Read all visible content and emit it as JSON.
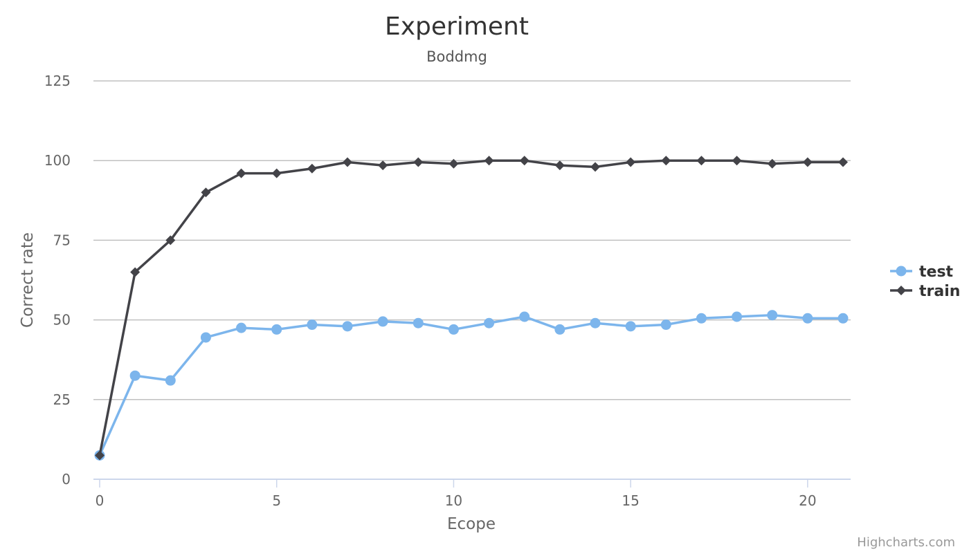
{
  "chart_data": {
    "type": "line",
    "title": "Experiment",
    "subtitle": "Boddmg",
    "xlabel": "Ecope",
    "ylabel": "Correct rate",
    "xlim": [
      0,
      21
    ],
    "ylim": [
      0,
      125
    ],
    "x_ticks": [
      0,
      5,
      10,
      15,
      20
    ],
    "y_ticks": [
      0,
      25,
      50,
      75,
      100,
      125
    ],
    "grid": "horizontal",
    "legend_position": "right",
    "x": [
      0,
      1,
      2,
      3,
      4,
      5,
      6,
      7,
      8,
      9,
      10,
      11,
      12,
      13,
      14,
      15,
      16,
      17,
      18,
      19,
      20,
      21
    ],
    "series": [
      {
        "name": "test",
        "color": "#7cb5ec",
        "marker": "circle",
        "values": [
          7.5,
          32.5,
          31,
          44.5,
          47.5,
          47,
          48.5,
          48,
          49.5,
          49,
          47,
          49,
          51,
          47,
          49,
          48,
          48.5,
          50.5,
          51,
          51.5,
          50.5,
          50.5
        ]
      },
      {
        "name": "train",
        "color": "#434348",
        "marker": "diamond",
        "values": [
          7.5,
          65,
          75,
          90,
          96,
          96,
          97.5,
          99.5,
          98.5,
          99.5,
          99,
          100,
          100,
          98.5,
          98,
          99.5,
          100,
          100,
          100,
          99,
          99.5,
          99.5
        ]
      }
    ]
  },
  "credits": "Highcharts.com"
}
